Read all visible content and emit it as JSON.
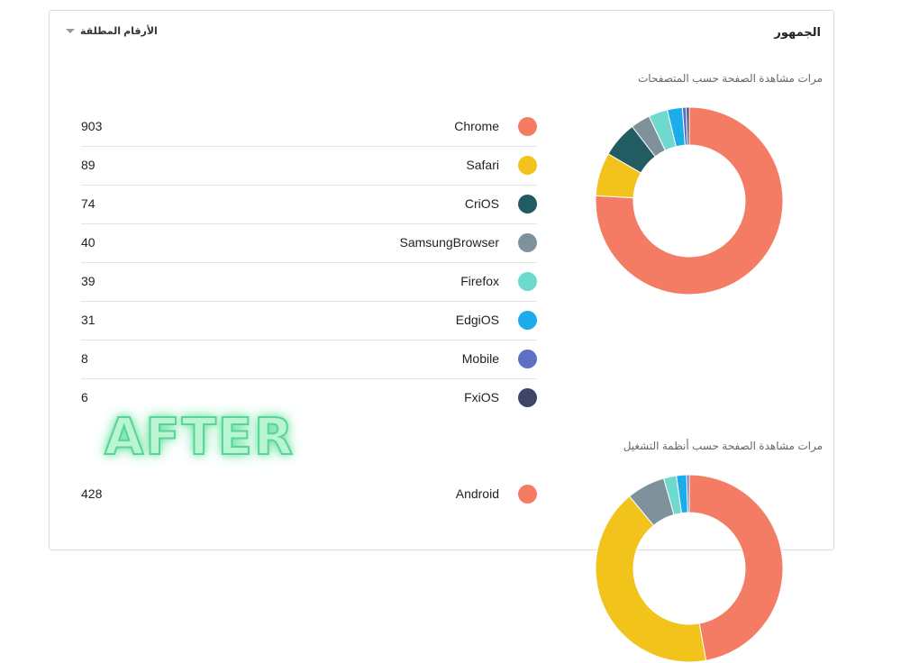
{
  "card": {
    "title": "الجمهور",
    "metric_select": "الأرقام المطلقة"
  },
  "browsers": {
    "title": "مرات مشاهدة الصفحة حسب المتصفحات",
    "items": [
      {
        "label": "Chrome",
        "count": "903",
        "color": "#f47c64"
      },
      {
        "label": "Safari",
        "count": "89",
        "color": "#f2c31b"
      },
      {
        "label": "CriOS",
        "count": "74",
        "color": "#235b63"
      },
      {
        "label": "SamsungBrowser",
        "count": "40",
        "color": "#7f929c"
      },
      {
        "label": "Firefox",
        "count": "39",
        "color": "#6dd9cf"
      },
      {
        "label": "EdgiOS",
        "count": "31",
        "color": "#1cacea"
      },
      {
        "label": "Mobile",
        "count": "8",
        "color": "#5e6fc4"
      },
      {
        "label": "FxiOS",
        "count": "6",
        "color": "#3d4668"
      }
    ]
  },
  "os": {
    "title": "مرات مشاهدة الصفحة حسب أنظمة التشغيل",
    "items": [
      {
        "label": "Android",
        "count": "428",
        "color": "#f47c64"
      }
    ],
    "chart_segments": [
      {
        "value": 428,
        "color": "#f47c64"
      },
      {
        "value": 380,
        "color": "#f2c31b"
      },
      {
        "value": 60,
        "color": "#7f929c"
      },
      {
        "value": 20,
        "color": "#6dd9cf"
      },
      {
        "value": 16,
        "color": "#1cacea"
      },
      {
        "value": 4,
        "color": "#5e6fc4"
      }
    ]
  },
  "watermark": "AFTER"
}
